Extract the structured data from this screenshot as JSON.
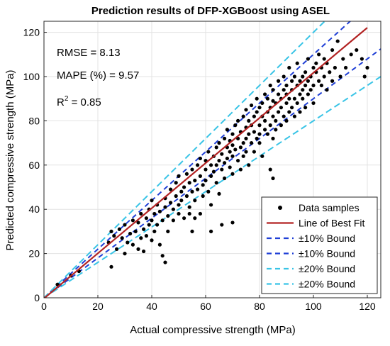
{
  "chart_data": {
    "type": "scatter",
    "title": "Prediction results of DFP-XGBoost using ASEL",
    "xlabel": "Actual compressive strength (MPa)",
    "ylabel": "Predicted compressive strength (MPa)",
    "xlim": [
      0,
      125
    ],
    "ylim": [
      0,
      125
    ],
    "x_ticks": [
      0,
      20,
      40,
      60,
      80,
      100,
      120
    ],
    "y_ticks": [
      0,
      20,
      40,
      60,
      80,
      100,
      120
    ],
    "grid": true,
    "legend_position": "bottom-right",
    "metrics": {
      "rmse": "RMSE = 8.13",
      "mape": "MAPE (%) = 9.57",
      "r2_prefix": "R",
      "r2_sup": "2",
      "r2_value": " = 0.85"
    },
    "series": [
      {
        "name": "Data samples",
        "kind": "points",
        "color": "#000000"
      },
      {
        "name": "Line of Best Fit",
        "kind": "line",
        "slope": 1.02,
        "intercept": -0.3,
        "x_range": [
          0,
          120
        ],
        "color": "#b22222"
      },
      {
        "name": "±10% Bound",
        "kind": "bound",
        "slope": 1.1,
        "x_range": [
          0,
          125
        ],
        "color": "#1f3fd6"
      },
      {
        "name": "±10% Bound",
        "kind": "bound",
        "slope": 0.9,
        "x_range": [
          0,
          125
        ],
        "color": "#1f3fd6"
      },
      {
        "name": "±20% Bound",
        "kind": "bound",
        "slope": 1.2,
        "x_range": [
          0,
          125
        ],
        "color": "#39c4e6"
      },
      {
        "name": "±20% Bound",
        "kind": "bound",
        "slope": 0.8,
        "x_range": [
          0,
          125
        ],
        "color": "#39c4e6"
      }
    ],
    "points": [
      [
        5,
        6
      ],
      [
        10,
        10
      ],
      [
        13,
        12
      ],
      [
        24,
        25
      ],
      [
        25,
        14
      ],
      [
        25,
        30
      ],
      [
        26,
        28
      ],
      [
        27,
        22
      ],
      [
        28,
        31
      ],
      [
        29,
        27
      ],
      [
        30,
        20
      ],
      [
        30,
        33
      ],
      [
        31,
        25
      ],
      [
        32,
        29
      ],
      [
        33,
        35
      ],
      [
        33,
        24
      ],
      [
        34,
        30
      ],
      [
        35,
        22
      ],
      [
        35,
        34
      ],
      [
        36,
        38
      ],
      [
        36,
        27
      ],
      [
        37,
        31
      ],
      [
        37,
        21
      ],
      [
        38,
        36
      ],
      [
        38,
        28
      ],
      [
        39,
        33
      ],
      [
        39,
        40
      ],
      [
        40,
        26
      ],
      [
        40,
        35
      ],
      [
        40,
        44
      ],
      [
        41,
        30
      ],
      [
        41,
        38
      ],
      [
        42,
        42
      ],
      [
        42,
        33
      ],
      [
        43,
        24
      ],
      [
        43,
        39
      ],
      [
        44,
        19
      ],
      [
        44,
        35
      ],
      [
        45,
        16
      ],
      [
        45,
        45
      ],
      [
        45,
        41
      ],
      [
        46,
        37
      ],
      [
        46,
        30
      ],
      [
        47,
        43
      ],
      [
        47,
        49
      ],
      [
        48,
        40
      ],
      [
        48,
        35
      ],
      [
        49,
        46
      ],
      [
        49,
        52
      ],
      [
        50,
        42
      ],
      [
        50,
        38
      ],
      [
        50,
        55
      ],
      [
        51,
        48
      ],
      [
        51,
        44
      ],
      [
        52,
        36
      ],
      [
        52,
        50
      ],
      [
        53,
        56
      ],
      [
        53,
        46
      ],
      [
        54,
        41
      ],
      [
        54,
        52
      ],
      [
        55,
        48
      ],
      [
        55,
        58
      ],
      [
        55,
        30
      ],
      [
        56,
        53
      ],
      [
        56,
        44
      ],
      [
        57,
        60
      ],
      [
        57,
        49
      ],
      [
        58,
        55
      ],
      [
        58,
        38
      ],
      [
        58,
        63
      ],
      [
        59,
        51
      ],
      [
        59,
        46
      ],
      [
        60,
        58
      ],
      [
        60,
        62
      ],
      [
        60,
        53
      ],
      [
        61,
        66
      ],
      [
        61,
        48
      ],
      [
        62,
        60
      ],
      [
        62,
        55
      ],
      [
        62,
        42
      ],
      [
        63,
        64
      ],
      [
        63,
        57
      ],
      [
        64,
        68
      ],
      [
        64,
        52
      ],
      [
        64,
        60
      ],
      [
        65,
        62
      ],
      [
        65,
        70
      ],
      [
        65,
        47
      ],
      [
        66,
        65
      ],
      [
        66,
        58
      ],
      [
        67,
        72
      ],
      [
        67,
        61
      ],
      [
        67,
        54
      ],
      [
        68,
        68
      ],
      [
        68,
        63
      ],
      [
        68,
        76
      ],
      [
        69,
        59
      ],
      [
        69,
        66
      ],
      [
        69,
        71
      ],
      [
        70,
        64
      ],
      [
        70,
        74
      ],
      [
        70,
        56
      ],
      [
        70,
        69
      ],
      [
        71,
        78
      ],
      [
        71,
        67
      ],
      [
        72,
        62
      ],
      [
        72,
        72
      ],
      [
        72,
        80
      ],
      [
        73,
        68
      ],
      [
        73,
        75
      ],
      [
        73,
        58
      ],
      [
        74,
        70
      ],
      [
        74,
        82
      ],
      [
        74,
        64
      ],
      [
        75,
        77
      ],
      [
        75,
        72
      ],
      [
        75,
        66
      ],
      [
        75,
        85
      ],
      [
        76,
        74
      ],
      [
        76,
        80
      ],
      [
        76,
        60
      ],
      [
        77,
        70
      ],
      [
        77,
        78
      ],
      [
        77,
        87
      ],
      [
        78,
        75
      ],
      [
        78,
        82
      ],
      [
        78,
        66
      ],
      [
        79,
        72
      ],
      [
        79,
        84
      ],
      [
        79,
        90
      ],
      [
        80,
        78
      ],
      [
        80,
        86
      ],
      [
        80,
        70
      ],
      [
        80,
        74
      ],
      [
        81,
        82
      ],
      [
        81,
        88
      ],
      [
        81,
        64
      ],
      [
        82,
        80
      ],
      [
        82,
        92
      ],
      [
        82,
        76
      ],
      [
        83,
        84
      ],
      [
        83,
        74
      ],
      [
        83,
        90
      ],
      [
        84,
        86
      ],
      [
        84,
        78
      ],
      [
        84,
        96
      ],
      [
        85,
        82
      ],
      [
        85,
        89
      ],
      [
        85,
        72
      ],
      [
        85,
        94
      ],
      [
        86,
        88
      ],
      [
        86,
        80
      ],
      [
        86,
        76
      ],
      [
        87,
        92
      ],
      [
        87,
        84
      ],
      [
        87,
        98
      ],
      [
        88,
        86
      ],
      [
        88,
        90
      ],
      [
        88,
        78
      ],
      [
        89,
        94
      ],
      [
        89,
        82
      ],
      [
        89,
        100
      ],
      [
        90,
        88
      ],
      [
        90,
        96
      ],
      [
        90,
        80
      ],
      [
        90,
        92
      ],
      [
        91,
        90
      ],
      [
        91,
        84
      ],
      [
        91,
        104
      ],
      [
        92,
        94
      ],
      [
        92,
        86
      ],
      [
        92,
        98
      ],
      [
        93,
        90
      ],
      [
        93,
        100
      ],
      [
        93,
        82
      ],
      [
        94,
        96
      ],
      [
        94,
        88
      ],
      [
        94,
        106
      ],
      [
        95,
        92
      ],
      [
        95,
        98
      ],
      [
        95,
        84
      ],
      [
        96,
        100
      ],
      [
        96,
        90
      ],
      [
        96,
        94
      ],
      [
        97,
        96
      ],
      [
        97,
        102
      ],
      [
        97,
        86
      ],
      [
        98,
        98
      ],
      [
        98,
        92
      ],
      [
        98,
        108
      ],
      [
        99,
        100
      ],
      [
        99,
        94
      ],
      [
        100,
        104
      ],
      [
        100,
        96
      ],
      [
        100,
        88
      ],
      [
        101,
        102
      ],
      [
        101,
        106
      ],
      [
        102,
        98
      ],
      [
        102,
        110
      ],
      [
        103,
        104
      ],
      [
        103,
        96
      ],
      [
        104,
        100
      ],
      [
        104,
        108
      ],
      [
        105,
        106
      ],
      [
        105,
        94
      ],
      [
        106,
        102
      ],
      [
        107,
        112
      ],
      [
        107,
        98
      ],
      [
        108,
        104
      ],
      [
        109,
        116
      ],
      [
        110,
        100
      ],
      [
        111,
        108
      ],
      [
        112,
        104
      ],
      [
        114,
        110
      ],
      [
        116,
        112
      ],
      [
        118,
        108
      ],
      [
        119,
        100
      ],
      [
        120,
        104
      ],
      [
        84,
        58
      ],
      [
        85,
        54
      ],
      [
        70,
        34
      ],
      [
        66,
        33
      ],
      [
        62,
        30
      ],
      [
        56,
        36
      ],
      [
        54,
        38
      ]
    ]
  }
}
